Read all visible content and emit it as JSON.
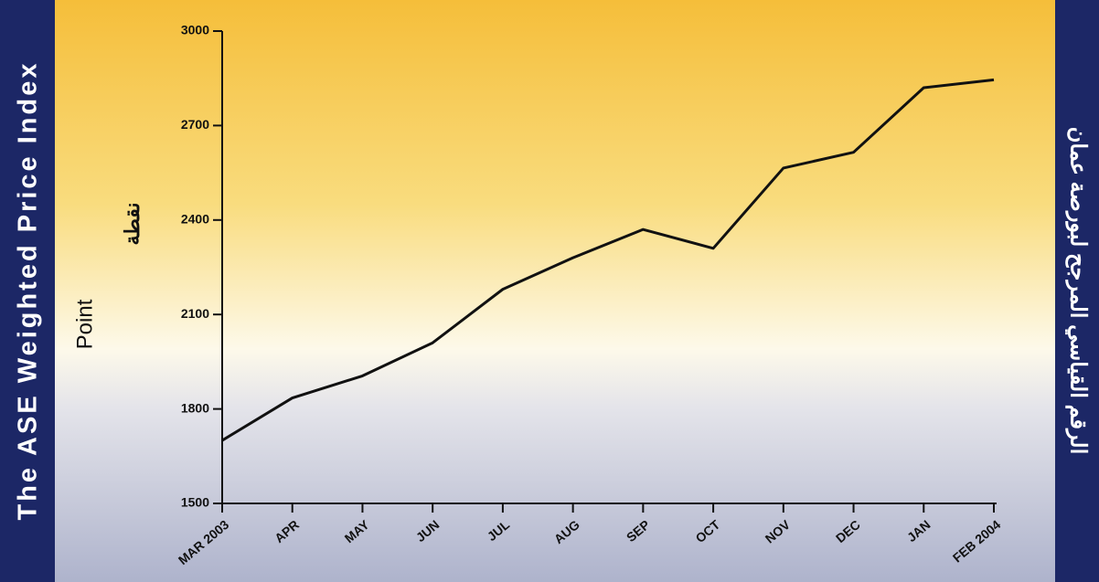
{
  "chart_data": {
    "type": "line",
    "title": "The ASE Weighted Price Index",
    "title_ar": "الرقم القياسي المرجح لبورصة عمان",
    "y_label": "Point",
    "y_label_ar": "نقطة",
    "categories": [
      "MAR 2003",
      "APR",
      "MAY",
      "JUN",
      "JUL",
      "AUG",
      "SEP",
      "OCT",
      "NOV",
      "DEC",
      "JAN",
      "FEB 2004"
    ],
    "values": [
      1700,
      1835,
      1905,
      2010,
      2180,
      2280,
      2370,
      2310,
      2565,
      2615,
      2820,
      2845
    ],
    "color": "#111111",
    "ylim": [
      1500,
      3000
    ],
    "yticks": [
      1500,
      1800,
      2100,
      2400,
      2700,
      3000
    ],
    "grid": false
  }
}
